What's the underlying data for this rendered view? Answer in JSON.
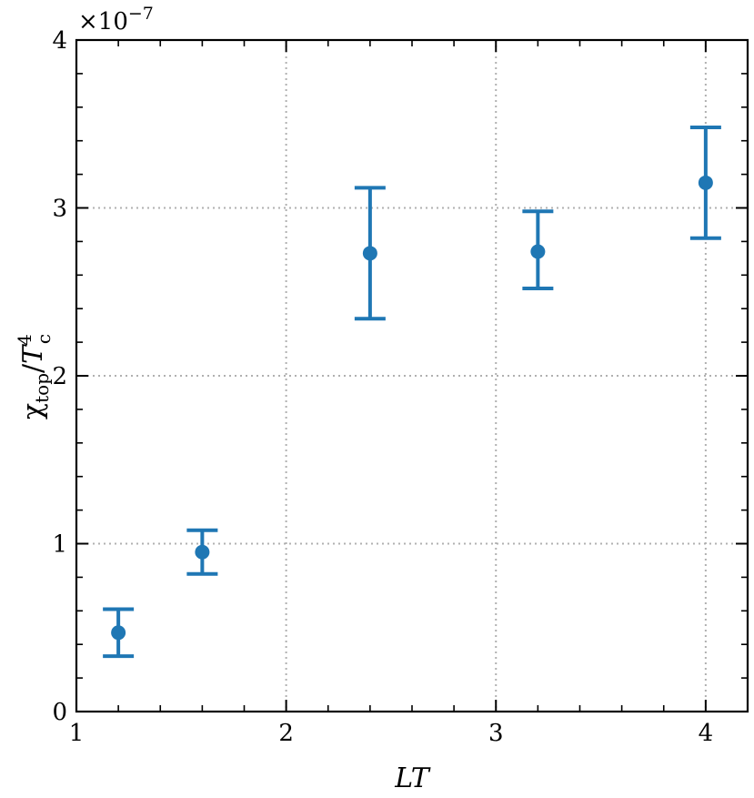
{
  "chart_data": {
    "type": "scatter",
    "title": "",
    "xlabel": "LT",
    "ylabel": {
      "base": "χ",
      "sub": "top",
      "slash": "/",
      "T": "T",
      "sup": "4",
      "sub2": "c"
    },
    "y_exponent": {
      "prefix": "×10",
      "power": "−7"
    },
    "xlim": [
      1,
      4.2
    ],
    "ylim": [
      0,
      4
    ],
    "xticks": [
      1,
      2,
      3,
      4
    ],
    "yticks": [
      0,
      1,
      2,
      3,
      4
    ],
    "xtick_labels": [
      "1",
      "2",
      "3",
      "4"
    ],
    "ytick_labels": [
      "0",
      "1",
      "2",
      "3",
      "4"
    ],
    "grid": true,
    "color": "#1f77b4",
    "points": [
      {
        "x": 1.2,
        "y": 0.47,
        "yerr_low": 0.33,
        "yerr_high": 0.61
      },
      {
        "x": 1.6,
        "y": 0.95,
        "yerr_low": 0.82,
        "yerr_high": 1.08
      },
      {
        "x": 2.4,
        "y": 2.73,
        "yerr_low": 2.34,
        "yerr_high": 3.12
      },
      {
        "x": 3.2,
        "y": 2.74,
        "yerr_low": 2.52,
        "yerr_high": 2.98
      },
      {
        "x": 4.0,
        "y": 3.15,
        "yerr_low": 2.82,
        "yerr_high": 3.48
      }
    ]
  }
}
